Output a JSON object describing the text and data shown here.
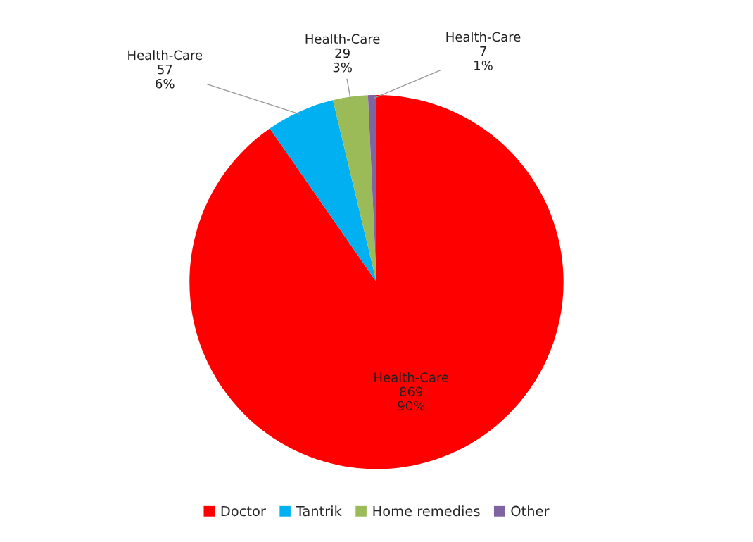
{
  "chart_data": {
    "type": "pie",
    "categories": [
      "Doctor",
      "Tantrik",
      "Home remedies",
      "Other"
    ],
    "values": [
      869,
      57,
      29,
      7
    ],
    "colors": [
      "#ff0000",
      "#00b0f0",
      "#9bbb59",
      "#8064a2"
    ],
    "value_labels": [
      "Health-Care\n869\n90%",
      "Health-Care\n57\n6%",
      "Health-Care\n29\n3%",
      "Health-Care\n7\n1%"
    ],
    "legend": "bottom"
  }
}
